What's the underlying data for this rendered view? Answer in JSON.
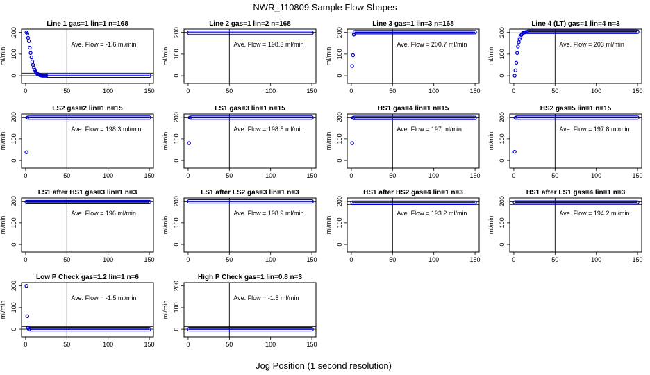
{
  "figure": {
    "title": "NWR_110809  Sample Flow Shapes",
    "xlabel": "Jog Position (1 second resolution)"
  },
  "style": {
    "point_color": "#0000cc",
    "axis_color": "#000000",
    "background": "#ffffff"
  },
  "chart_data": [
    {
      "type": "scatter",
      "title": "Line 1 gas=1 lin=1 n=168",
      "annotation": "Ave. Flow =  -1.6  ml/min",
      "ylabel": "ml/min",
      "xlim": [
        -5,
        155
      ],
      "ylim": [
        -35,
        215
      ],
      "xticks": [
        0,
        50,
        100,
        150
      ],
      "yticks": [
        0,
        100,
        200
      ],
      "hlines": [
        0,
        12
      ],
      "vline": 50,
      "series": [
        {
          "x": [
            1,
            2,
            3,
            4,
            5,
            6,
            7,
            8,
            9,
            10,
            11,
            12,
            13,
            14,
            15,
            16,
            17,
            18,
            19,
            20,
            21,
            22,
            23,
            24,
            25
          ],
          "y": [
            200,
            195,
            175,
            160,
            130,
            105,
            85,
            65,
            50,
            38,
            28,
            20,
            14,
            10,
            7,
            5,
            3,
            2,
            1,
            0,
            0,
            0,
            0,
            0,
            0
          ],
          "band": {
            "x_from": 26,
            "x_to": 150,
            "y": 0
          }
        }
      ]
    },
    {
      "type": "scatter",
      "title": "Line 2 gas=1 lin=2 n=168",
      "annotation": "Ave. Flow =  198.3  ml/min",
      "ylabel": "ml/min",
      "xlim": [
        -5,
        155
      ],
      "ylim": [
        -35,
        215
      ],
      "xticks": [
        0,
        50,
        100,
        150
      ],
      "yticks": [
        0,
        100,
        200
      ],
      "hlines": [
        200
      ],
      "vline": 50,
      "series": [
        {
          "x": [],
          "y": [],
          "band": {
            "x_from": 1,
            "x_to": 150,
            "y": 198
          }
        }
      ]
    },
    {
      "type": "scatter",
      "title": "Line 3 gas=1 lin=3 n=168",
      "annotation": "Ave. Flow =  200.7  ml/min",
      "ylabel": "ml/min",
      "xlim": [
        -5,
        155
      ],
      "ylim": [
        -35,
        215
      ],
      "xticks": [
        0,
        50,
        100,
        150
      ],
      "yticks": [
        0,
        100,
        200
      ],
      "hlines": [
        198
      ],
      "vline": 50,
      "series": [
        {
          "x": [
            1,
            2,
            3
          ],
          "y": [
            45,
            95,
            190
          ],
          "band": {
            "x_from": 4,
            "x_to": 150,
            "y": 201
          }
        }
      ]
    },
    {
      "type": "scatter",
      "title": "Line 4 (LT) gas=1 lin=4 n=3",
      "annotation": "Ave. Flow =  203  ml/min",
      "ylabel": "ml/min",
      "xlim": [
        -5,
        155
      ],
      "ylim": [
        -35,
        215
      ],
      "xticks": [
        0,
        50,
        100,
        150
      ],
      "yticks": [
        0,
        100,
        200
      ],
      "hlines": [
        198
      ],
      "vline": 50,
      "series": [
        {
          "x": [
            1,
            2,
            3,
            4,
            5,
            6,
            7,
            8,
            9,
            10,
            11,
            12,
            13,
            14,
            15,
            16
          ],
          "y": [
            0,
            25,
            60,
            105,
            135,
            155,
            170,
            180,
            188,
            193,
            197,
            199,
            200,
            201,
            202,
            202
          ],
          "band": {
            "x_from": 17,
            "x_to": 150,
            "y": 203
          }
        }
      ]
    },
    {
      "type": "scatter",
      "title": "LS2 gas=2 lin=1 n=15",
      "annotation": "Ave. Flow =  198.3  ml/min",
      "ylabel": "ml/min",
      "xlim": [
        -5,
        155
      ],
      "ylim": [
        -35,
        215
      ],
      "xticks": [
        0,
        50,
        100,
        150
      ],
      "yticks": [
        0,
        100,
        200
      ],
      "hlines": [
        198
      ],
      "vline": 50,
      "series": [
        {
          "x": [
            1,
            2
          ],
          "y": [
            38,
            198
          ],
          "band": {
            "x_from": 3,
            "x_to": 150,
            "y": 198
          }
        }
      ]
    },
    {
      "type": "scatter",
      "title": "LS1 gas=3 lin=1 n=15",
      "annotation": "Ave. Flow =  198.5  ml/min",
      "ylabel": "ml/min",
      "xlim": [
        -5,
        155
      ],
      "ylim": [
        -35,
        215
      ],
      "xticks": [
        0,
        50,
        100,
        150
      ],
      "yticks": [
        0,
        100,
        200
      ],
      "hlines": [
        198
      ],
      "vline": 50,
      "series": [
        {
          "x": [
            1,
            2
          ],
          "y": [
            80,
            198
          ],
          "band": {
            "x_from": 3,
            "x_to": 150,
            "y": 198
          }
        }
      ]
    },
    {
      "type": "scatter",
      "title": "HS1 gas=4 lin=1 n=15",
      "annotation": "Ave. Flow =  197  ml/min",
      "ylabel": "ml/min",
      "xlim": [
        -5,
        155
      ],
      "ylim": [
        -35,
        215
      ],
      "xticks": [
        0,
        50,
        100,
        150
      ],
      "yticks": [
        0,
        100,
        200
      ],
      "hlines": [
        198
      ],
      "vline": 50,
      "series": [
        {
          "x": [
            1,
            2
          ],
          "y": [
            80,
            197
          ],
          "band": {
            "x_from": 3,
            "x_to": 150,
            "y": 197
          }
        }
      ]
    },
    {
      "type": "scatter",
      "title": "HS2 gas=5 lin=1 n=15",
      "annotation": "Ave. Flow =  197.8  ml/min",
      "ylabel": "ml/min",
      "xlim": [
        -5,
        155
      ],
      "ylim": [
        -35,
        215
      ],
      "xticks": [
        0,
        50,
        100,
        150
      ],
      "yticks": [
        0,
        100,
        200
      ],
      "hlines": [
        198
      ],
      "vline": 50,
      "series": [
        {
          "x": [
            1,
            2
          ],
          "y": [
            40,
            197
          ],
          "band": {
            "x_from": 3,
            "x_to": 150,
            "y": 198
          }
        }
      ]
    },
    {
      "type": "scatter",
      "title": "LS1 after HS1 gas=3 lin=1 n=3",
      "annotation": "Ave. Flow =  196  ml/min",
      "ylabel": "ml/min",
      "xlim": [
        -5,
        155
      ],
      "ylim": [
        -35,
        215
      ],
      "xticks": [
        0,
        50,
        100,
        150
      ],
      "yticks": [
        0,
        100,
        200
      ],
      "hlines": [
        198
      ],
      "vline": 50,
      "series": [
        {
          "x": [],
          "y": [],
          "band": {
            "x_from": 1,
            "x_to": 150,
            "y": 196
          }
        }
      ]
    },
    {
      "type": "scatter",
      "title": "LS1 after LS2 gas=3 lin=1 n=3",
      "annotation": "Ave. Flow =  198.9  ml/min",
      "ylabel": "ml/min",
      "xlim": [
        -5,
        155
      ],
      "ylim": [
        -35,
        215
      ],
      "xticks": [
        0,
        50,
        100,
        150
      ],
      "yticks": [
        0,
        100,
        200
      ],
      "hlines": [
        198
      ],
      "vline": 50,
      "series": [
        {
          "x": [],
          "y": [],
          "band": {
            "x_from": 1,
            "x_to": 150,
            "y": 199
          }
        }
      ]
    },
    {
      "type": "scatter",
      "title": "HS1 after HS2 gas=4 lin=1 n=3",
      "annotation": "Ave. Flow =  193.2  ml/min",
      "ylabel": "ml/min",
      "xlim": [
        -5,
        155
      ],
      "ylim": [
        -35,
        215
      ],
      "xticks": [
        0,
        50,
        100,
        150
      ],
      "yticks": [
        0,
        100,
        200
      ],
      "hlines": [
        198,
        185
      ],
      "vline": 50,
      "series": [
        {
          "x": [],
          "y": [],
          "band": {
            "x_from": 1,
            "x_to": 150,
            "y": 193
          }
        }
      ]
    },
    {
      "type": "scatter",
      "title": "HS1 after LS1 gas=4 lin=1 n=3",
      "annotation": "Ave. Flow =  194.2  ml/min",
      "ylabel": "ml/min",
      "xlim": [
        -5,
        155
      ],
      "ylim": [
        -35,
        215
      ],
      "xticks": [
        0,
        50,
        100,
        150
      ],
      "yticks": [
        0,
        100,
        200
      ],
      "hlines": [
        198,
        185
      ],
      "vline": 50,
      "series": [
        {
          "x": [],
          "y": [],
          "band": {
            "x_from": 1,
            "x_to": 150,
            "y": 194
          }
        }
      ]
    },
    {
      "type": "scatter",
      "title": "Low P Check gas=1.2 lin=1 n=6",
      "annotation": "Ave. Flow =  -1.5  ml/min",
      "ylabel": "ml/min",
      "xlim": [
        -5,
        155
      ],
      "ylim": [
        -35,
        215
      ],
      "xticks": [
        0,
        50,
        100,
        150
      ],
      "yticks": [
        0,
        100,
        200
      ],
      "hlines": [
        0,
        12
      ],
      "vline": 50,
      "series": [
        {
          "x": [
            1,
            2,
            3,
            4
          ],
          "y": [
            200,
            60,
            5,
            0
          ],
          "band": {
            "x_from": 5,
            "x_to": 150,
            "y": 0
          }
        }
      ]
    },
    {
      "type": "scatter",
      "title": "High P Check gas=1 lin=0.8 n=3",
      "annotation": "Ave. Flow =  -1.5  ml/min",
      "ylabel": "ml/min",
      "xlim": [
        -5,
        155
      ],
      "ylim": [
        -35,
        215
      ],
      "xticks": [
        0,
        50,
        100,
        150
      ],
      "yticks": [
        0,
        100,
        200
      ],
      "hlines": [
        0,
        12
      ],
      "vline": 50,
      "series": [
        {
          "x": [],
          "y": [],
          "band": {
            "x_from": 1,
            "x_to": 150,
            "y": 0
          }
        }
      ]
    }
  ]
}
